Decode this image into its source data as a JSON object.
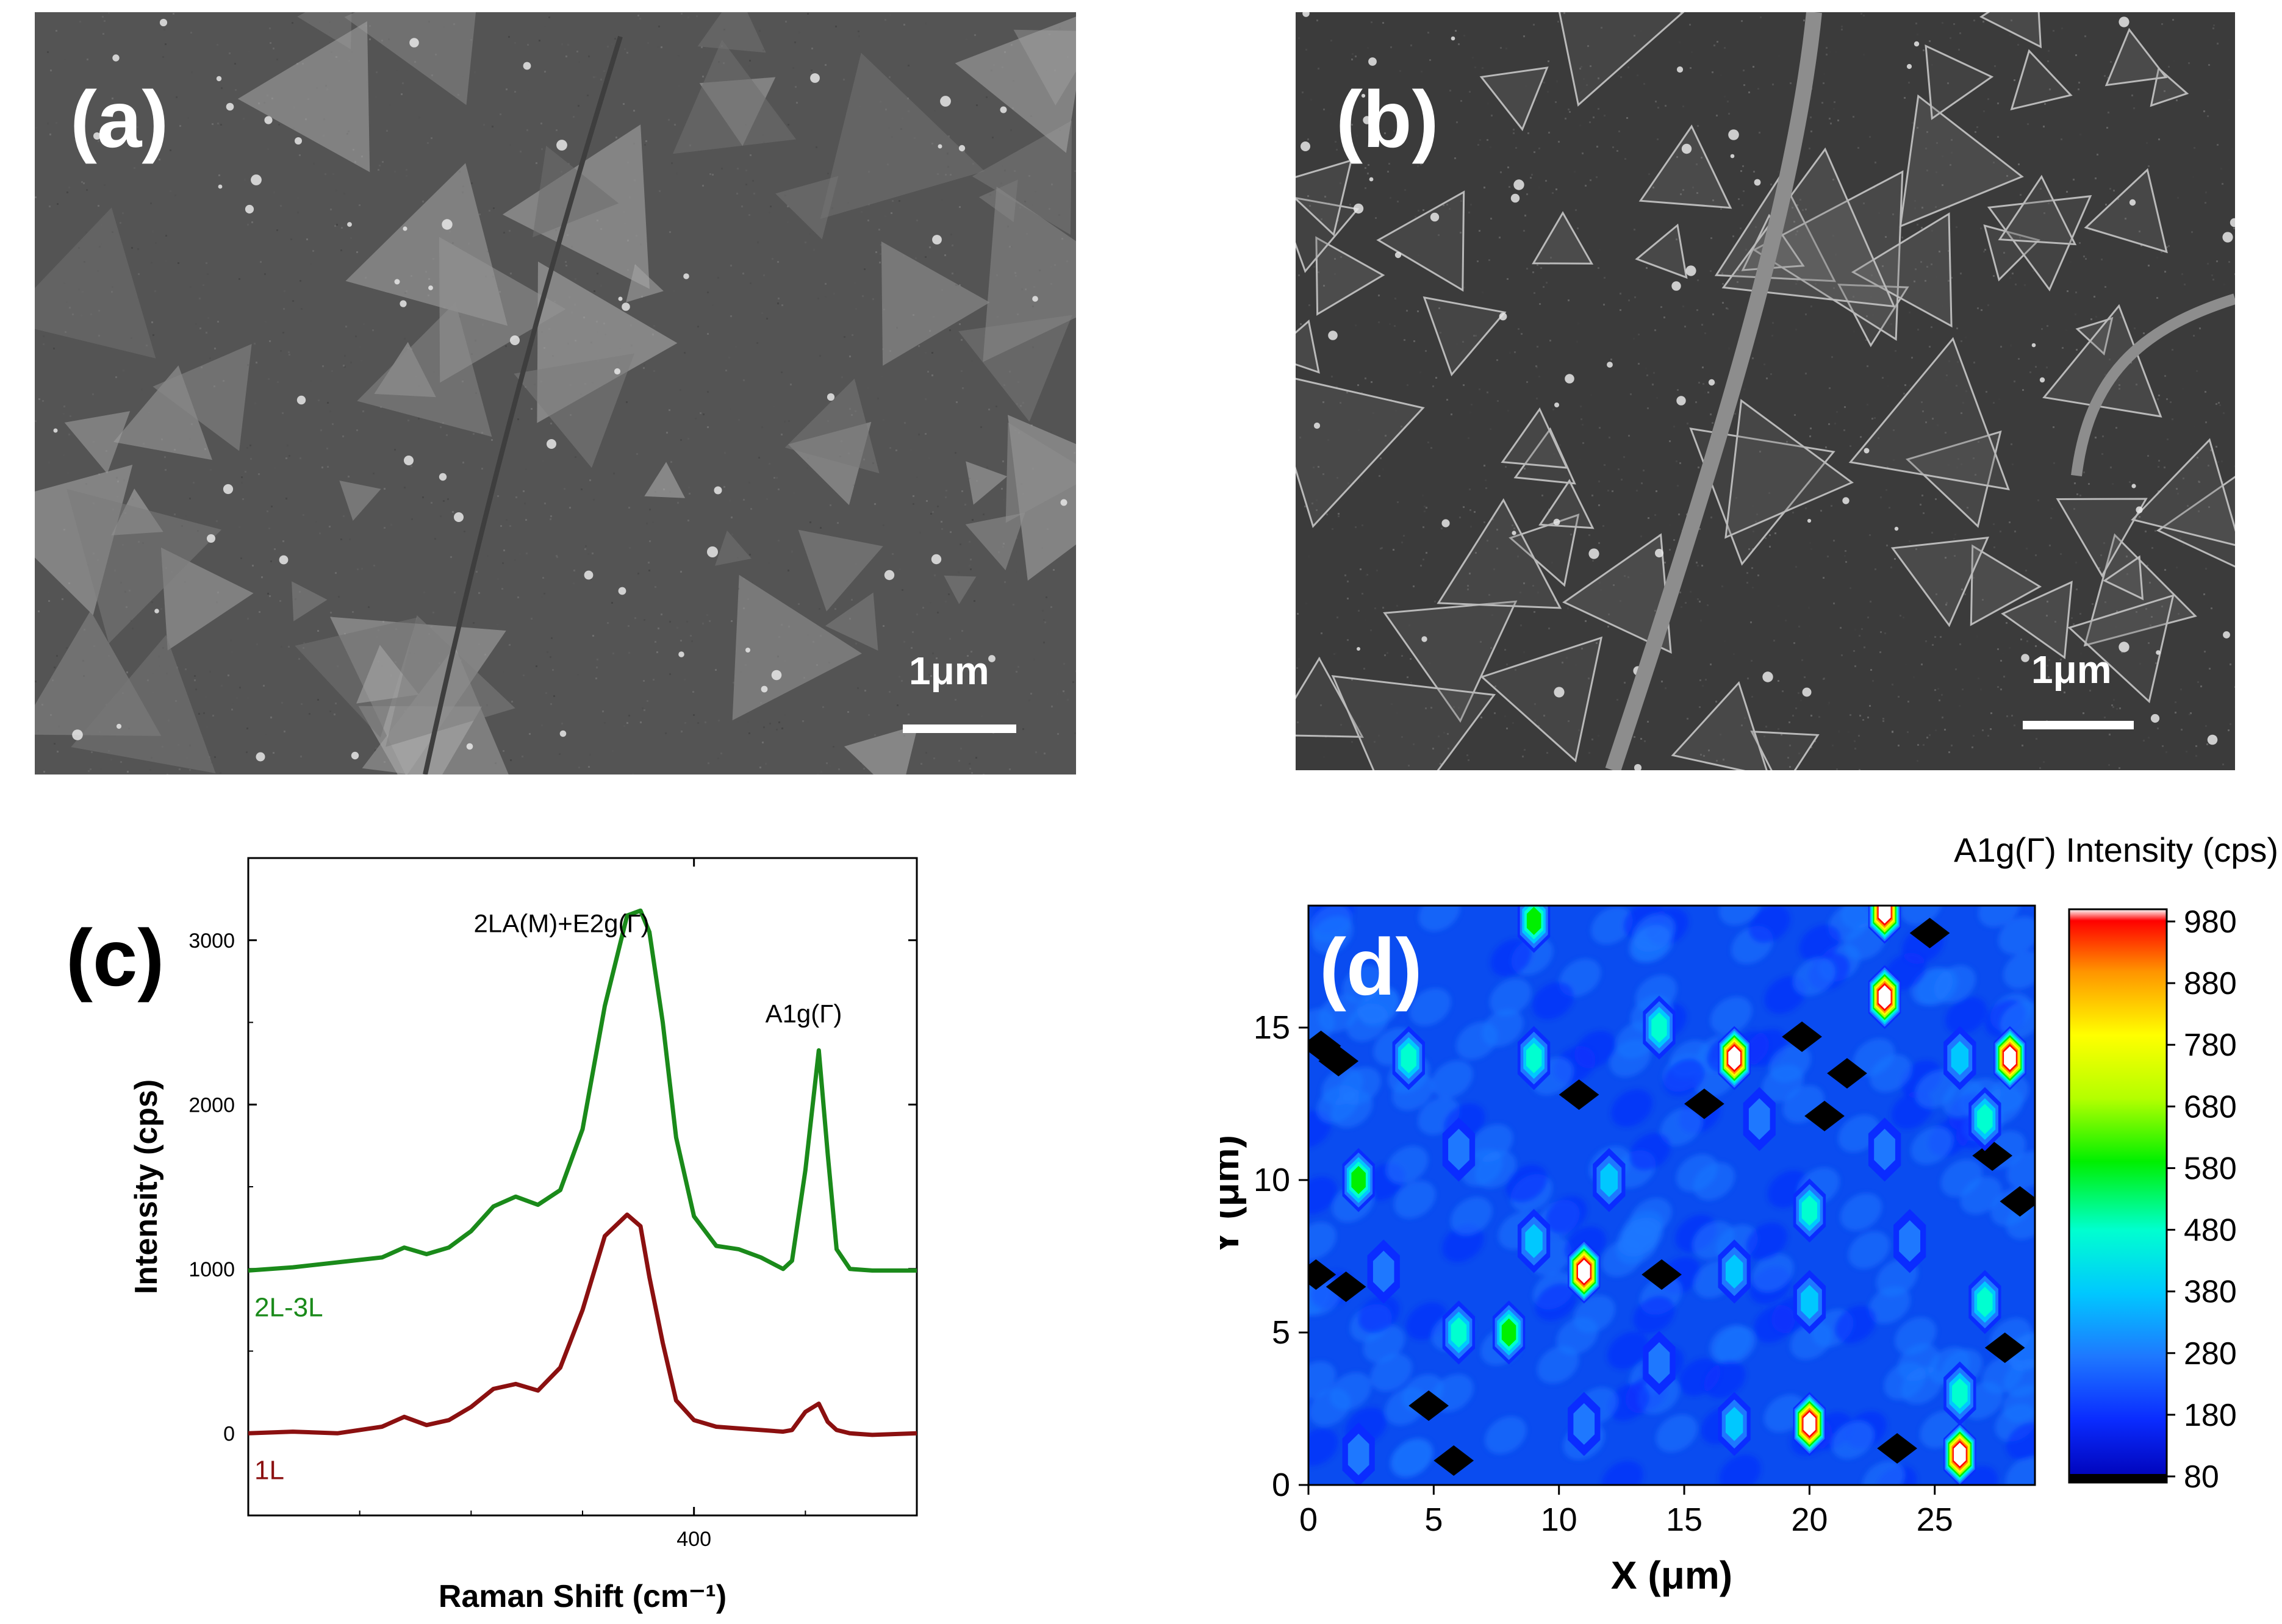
{
  "panels": {
    "a": {
      "label": "(a)",
      "scale_label": "1μm"
    },
    "b": {
      "label": "(b)",
      "scale_label": "1μm"
    },
    "c": {
      "label": "(c)"
    },
    "d": {
      "label": "(d)"
    }
  },
  "chart_data": [
    {
      "panel": "(c)",
      "type": "line",
      "xlabel": "Raman Shift (cm⁻¹)",
      "ylabel": "Intensity (cps)",
      "x_ticks": [
        400
      ],
      "y_ticks": [
        0,
        1000,
        2000,
        3000
      ],
      "xlim": [
        300,
        450
      ],
      "ylim": [
        -500,
        3500
      ],
      "annotations": [
        {
          "text": "2LA(M)+E2g(Γ)",
          "x": 390,
          "y": 3050
        },
        {
          "text": "A1g(Γ)",
          "x": 416,
          "y": 2500
        }
      ],
      "colors": {
        "2L-3L": "#1a8a1a",
        "1L": "#8b1010"
      },
      "series": [
        {
          "name": "2L-3L",
          "x": [
            300,
            310,
            320,
            330,
            335,
            340,
            345,
            350,
            355,
            360,
            365,
            370,
            375,
            380,
            385,
            388,
            390,
            393,
            396,
            400,
            405,
            410,
            415,
            420,
            422,
            425,
            428,
            430,
            432,
            435,
            440,
            450
          ],
          "y": [
            990,
            1010,
            1040,
            1070,
            1130,
            1090,
            1130,
            1230,
            1380,
            1440,
            1390,
            1480,
            1850,
            2600,
            3150,
            3180,
            3050,
            2500,
            1800,
            1320,
            1140,
            1120,
            1070,
            1000,
            1050,
            1600,
            2330,
            1700,
            1120,
            1000,
            990,
            990
          ]
        },
        {
          "name": "1L",
          "x": [
            300,
            310,
            320,
            330,
            335,
            340,
            345,
            350,
            355,
            360,
            365,
            370,
            375,
            380,
            385,
            388,
            390,
            393,
            396,
            400,
            405,
            410,
            415,
            420,
            422,
            425,
            428,
            430,
            432,
            435,
            440,
            450
          ],
          "y": [
            0,
            10,
            0,
            40,
            100,
            50,
            80,
            160,
            270,
            300,
            260,
            400,
            750,
            1200,
            1330,
            1260,
            950,
            550,
            200,
            80,
            40,
            30,
            20,
            10,
            20,
            130,
            180,
            70,
            20,
            0,
            -10,
            0
          ]
        }
      ]
    },
    {
      "panel": "(d)",
      "type": "heatmap",
      "xlabel": "X (μm)",
      "ylabel": "Y (μm)",
      "x_ticks": [
        0,
        5,
        10,
        15,
        20,
        25
      ],
      "y_ticks": [
        0,
        5,
        10,
        15
      ],
      "xlim": [
        0,
        29
      ],
      "ylim": [
        0,
        19
      ],
      "colorbar": {
        "title": "A1g(Γ) Intensity (cps)",
        "ticks": [
          80,
          180,
          280,
          380,
          480,
          580,
          680,
          780,
          880,
          980
        ]
      },
      "hotspots": [
        {
          "x": 9,
          "y": 18.5,
          "v": 620
        },
        {
          "x": 23,
          "y": 18.8,
          "v": 1000
        },
        {
          "x": 23,
          "y": 16,
          "v": 1000
        },
        {
          "x": 17,
          "y": 14,
          "v": 1000
        },
        {
          "x": 28,
          "y": 14,
          "v": 1000
        },
        {
          "x": 14,
          "y": 15,
          "v": 560
        },
        {
          "x": 9,
          "y": 14,
          "v": 560
        },
        {
          "x": 4,
          "y": 14,
          "v": 480
        },
        {
          "x": 26,
          "y": 14,
          "v": 450
        },
        {
          "x": 27,
          "y": 12,
          "v": 520
        },
        {
          "x": 2,
          "y": 10,
          "v": 600
        },
        {
          "x": 12,
          "y": 10,
          "v": 450
        },
        {
          "x": 20,
          "y": 9,
          "v": 560
        },
        {
          "x": 9,
          "y": 8,
          "v": 420
        },
        {
          "x": 11,
          "y": 7,
          "v": 1000
        },
        {
          "x": 17,
          "y": 7,
          "v": 420
        },
        {
          "x": 6,
          "y": 5,
          "v": 520
        },
        {
          "x": 8,
          "y": 5,
          "v": 600
        },
        {
          "x": 20,
          "y": 6,
          "v": 400
        },
        {
          "x": 27,
          "y": 6,
          "v": 560
        },
        {
          "x": 20,
          "y": 2,
          "v": 1000
        },
        {
          "x": 26,
          "y": 1,
          "v": 1000
        },
        {
          "x": 26,
          "y": 3,
          "v": 500
        },
        {
          "x": 17,
          "y": 2,
          "v": 380
        },
        {
          "x": 14,
          "y": 4,
          "v": 300
        },
        {
          "x": 23,
          "y": 11,
          "v": 320
        },
        {
          "x": 18,
          "y": 12,
          "v": 320
        },
        {
          "x": 6,
          "y": 11,
          "v": 330
        },
        {
          "x": 3,
          "y": 7,
          "v": 280
        },
        {
          "x": 2,
          "y": 1,
          "v": 330
        },
        {
          "x": 11,
          "y": 2,
          "v": 300
        },
        {
          "x": 24,
          "y": 8,
          "v": 300
        }
      ],
      "black_regions": [
        {
          "x": 0.3,
          "y": 6.9
        },
        {
          "x": 1.5,
          "y": 6.5
        },
        {
          "x": 1.2,
          "y": 13.9
        },
        {
          "x": 0.5,
          "y": 14.4
        },
        {
          "x": 20.6,
          "y": 12.1
        },
        {
          "x": 21.5,
          "y": 13.5
        },
        {
          "x": 19.7,
          "y": 14.7
        },
        {
          "x": 27.8,
          "y": 4.5
        },
        {
          "x": 23.5,
          "y": 1.2
        },
        {
          "x": 27.3,
          "y": 10.8
        },
        {
          "x": 14.1,
          "y": 6.9
        },
        {
          "x": 5.8,
          "y": 0.8
        },
        {
          "x": 28.4,
          "y": 9.3
        },
        {
          "x": 4.8,
          "y": 2.6
        },
        {
          "x": 24.8,
          "y": 18.1
        },
        {
          "x": 15.8,
          "y": 12.5
        },
        {
          "x": 10.8,
          "y": 12.8
        }
      ]
    }
  ]
}
